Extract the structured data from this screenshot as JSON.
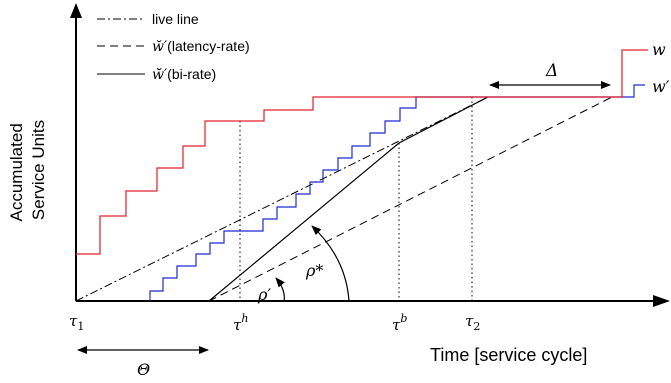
{
  "axes": {
    "y_label_line1": "Accumulated",
    "y_label_line2": "Service Units",
    "x_label": "Time [service cycle]"
  },
  "legend": {
    "items": [
      {
        "style": "dashdot",
        "label": "live line"
      },
      {
        "style": "dashed",
        "label_symbol": "w̆′",
        "label_text": "(latency-rate)"
      },
      {
        "style": "solid",
        "label_symbol": "w̆̆′",
        "label_text": "(bi-rate)"
      }
    ]
  },
  "curve_labels": {
    "w": "w",
    "w_prime": "w′"
  },
  "time_ticks": {
    "tau1": "τ",
    "tau1_sub": "1",
    "tau_h": "τ",
    "tau_h_sup": "h",
    "tau_b": "τ",
    "tau_b_sup": "b",
    "tau2": "τ",
    "tau2_sub": "2"
  },
  "annotations": {
    "delta": "Δ",
    "theta": "Θ",
    "rho_prime": "ρ′",
    "rho_star": "ρ*"
  },
  "colors": {
    "w_curve": "#e0202a",
    "w_prime_curve": "#1f2bd0",
    "lines": "#000000"
  }
}
